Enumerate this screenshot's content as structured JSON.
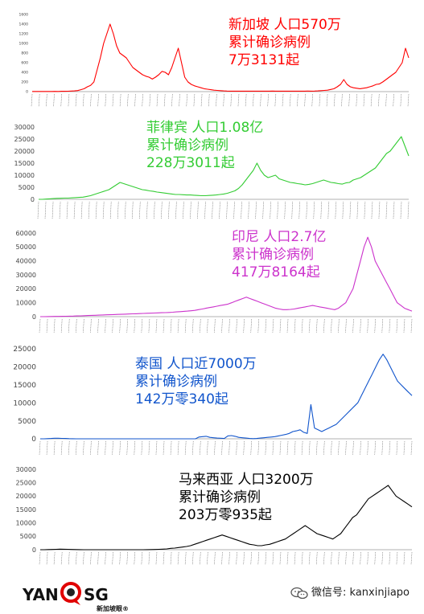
{
  "chart_data": [
    {
      "type": "line",
      "series": [
        {
          "values": [
            3,
            3,
            3,
            3,
            3,
            4,
            4,
            5,
            4,
            6,
            6,
            8,
            12,
            15,
            22,
            40,
            60,
            100,
            130,
            200,
            450,
            700,
            1000,
            1200,
            1400,
            1200,
            950,
            800,
            750,
            700,
            600,
            500,
            450,
            400,
            350,
            320,
            300,
            260,
            300,
            350,
            420,
            400,
            350,
            500,
            700,
            900,
            600,
            300,
            200,
            150,
            120,
            100,
            80,
            60,
            50,
            40,
            30,
            25,
            20,
            15,
            12,
            10,
            10,
            10,
            10,
            10,
            10,
            10,
            10,
            10,
            10,
            10,
            10,
            10,
            12,
            10,
            10,
            10,
            10,
            10,
            10,
            10,
            10,
            10,
            10,
            12,
            10,
            12,
            15,
            20,
            25,
            30,
            45,
            60,
            100,
            150,
            250,
            150,
            100,
            80,
            70,
            60,
            70,
            80,
            100,
            120,
            150,
            160,
            200,
            250,
            300,
            350,
            400,
            500,
            600,
            900,
            700
          ]
        }
      ],
      "yticks": [
        0,
        200,
        400,
        600,
        800,
        1000,
        1200,
        1400,
        1600
      ],
      "ylim": [
        0,
        1600
      ],
      "color": "#ff0000",
      "annotation": {
        "line1": "新加坡  人口570万",
        "line2": "累计确诊病例",
        "line3": "7万3131起"
      }
    },
    {
      "type": "line",
      "series": [
        {
          "values": [
            0,
            0,
            100,
            200,
            300,
            400,
            450,
            500,
            500,
            600,
            700,
            800,
            900,
            1200,
            1500,
            2000,
            2500,
            3000,
            3500,
            4000,
            5000,
            6000,
            7000,
            6500,
            6000,
            5500,
            5000,
            4500,
            4000,
            3800,
            3500,
            3300,
            3000,
            2800,
            2600,
            2400,
            2200,
            2000,
            2000,
            1900,
            1800,
            1800,
            1700,
            1600,
            1500,
            1500,
            1600,
            1700,
            1800,
            2000,
            2200,
            2500,
            3000,
            3500,
            4500,
            6000,
            8000,
            10000,
            12000,
            15000,
            12000,
            10000,
            9000,
            9500,
            10000,
            8500,
            8000,
            7500,
            7000,
            6800,
            6500,
            6300,
            6000,
            6200,
            6500,
            7000,
            7500,
            8000,
            7500,
            7000,
            6800,
            6500,
            6300,
            6800,
            7000,
            8000,
            8500,
            9000,
            10000,
            11000,
            12000,
            13000,
            15000,
            17000,
            19000,
            20000,
            22000,
            24000,
            26000,
            22000,
            18000
          ]
        }
      ],
      "yticks": [
        0,
        5000,
        10000,
        15000,
        20000,
        25000,
        30000
      ],
      "ylim": [
        0,
        30000
      ],
      "color": "#33cc33",
      "annotation": {
        "line1": "菲律宾  人口1.08亿",
        "line2": "累计确诊病例",
        "line3": "228万3011起"
      }
    },
    {
      "type": "line",
      "series": [
        {
          "values": [
            0,
            0,
            50,
            100,
            150,
            200,
            250,
            300,
            350,
            400,
            500,
            600,
            700,
            800,
            900,
            1000,
            1100,
            1200,
            1300,
            1400,
            1500,
            1600,
            1700,
            1800,
            1900,
            2000,
            2100,
            2200,
            2300,
            2400,
            2500,
            2600,
            2700,
            2800,
            2900,
            3000,
            3200,
            3400,
            3600,
            3800,
            4000,
            4200,
            4500,
            5000,
            5500,
            6000,
            6500,
            7000,
            7500,
            8000,
            8500,
            9000,
            10000,
            11000,
            12000,
            13000,
            14000,
            13000,
            12000,
            11000,
            10000,
            9000,
            8000,
            7000,
            6000,
            5500,
            5000,
            5000,
            5200,
            5500,
            6000,
            6500,
            7000,
            7500,
            8000,
            7500,
            7000,
            6500,
            6000,
            5500,
            5000,
            6000,
            8000,
            10000,
            15000,
            20000,
            30000,
            40000,
            50000,
            57000,
            50000,
            40000,
            35000,
            30000,
            25000,
            20000,
            15000,
            10000,
            8000,
            6000,
            5000,
            4000
          ]
        }
      ],
      "yticks": [
        0,
        10000,
        20000,
        30000,
        40000,
        50000,
        60000
      ],
      "ylim": [
        0,
        60000
      ],
      "color": "#cc33cc",
      "annotation": {
        "line1": "印尼  人口2.7亿",
        "line2": "累计确诊病例",
        "line3": "417万8164起"
      }
    },
    {
      "type": "line",
      "series": [
        {
          "values": [
            0,
            0,
            50,
            100,
            150,
            150,
            120,
            100,
            50,
            20,
            10,
            5,
            5,
            5,
            5,
            5,
            5,
            5,
            5,
            5,
            5,
            5,
            5,
            5,
            5,
            5,
            5,
            5,
            5,
            5,
            5,
            5,
            5,
            5,
            5,
            5,
            5,
            5,
            5,
            5,
            5,
            5,
            5,
            5,
            500,
            600,
            700,
            400,
            300,
            200,
            150,
            100,
            800,
            900,
            700,
            400,
            300,
            200,
            100,
            50,
            100,
            200,
            300,
            400,
            500,
            600,
            800,
            1000,
            1200,
            1500,
            2000,
            2200,
            2500,
            1800,
            1500,
            9500,
            3000,
            2500,
            2000,
            2500,
            3000,
            3500,
            4000,
            5000,
            6000,
            7000,
            8000,
            9000,
            10000,
            12000,
            14000,
            16000,
            18000,
            20000,
            22000,
            23500,
            22000,
            20000,
            18000,
            16000,
            15000,
            14000,
            13000,
            12000
          ]
        }
      ],
      "yticks": [
        0,
        5000,
        10000,
        15000,
        20000,
        25000
      ],
      "ylim": [
        0,
        25000
      ],
      "color": "#1155cc",
      "annotation": {
        "line1": "泰国  人口近7000万",
        "line2": "累计确诊病例",
        "line3": "142万零340起"
      }
    },
    {
      "type": "line",
      "series": [
        {
          "values": [
            0,
            0,
            50,
            100,
            150,
            200,
            180,
            150,
            100,
            50,
            20,
            10,
            5,
            5,
            5,
            5,
            5,
            5,
            5,
            5,
            5,
            5,
            5,
            5,
            5,
            5,
            10,
            20,
            50,
            100,
            150,
            200,
            300,
            500,
            600,
            800,
            1000,
            1200,
            1500,
            2000,
            2500,
            3000,
            3500,
            4000,
            4500,
            5000,
            5500,
            5000,
            4500,
            4000,
            3500,
            3000,
            2500,
            2000,
            1800,
            1500,
            1500,
            1800,
            2000,
            2500,
            3000,
            3500,
            4000,
            5000,
            6000,
            7000,
            8000,
            9000,
            8000,
            7000,
            6000,
            5500,
            5000,
            4500,
            4000,
            5000,
            6000,
            8000,
            10000,
            12000,
            13000,
            15000,
            17000,
            19000,
            20000,
            21000,
            22000,
            23000,
            24000,
            22000,
            20000,
            19000,
            18000,
            17000,
            16000
          ]
        }
      ],
      "yticks": [
        0,
        5000,
        10000,
        15000,
        20000,
        25000,
        30000
      ],
      "ylim": [
        0,
        30000
      ],
      "color": "#000000",
      "annotation": {
        "line1": "马来西亚  人口3200万",
        "line2": "累计确诊病例",
        "line3": "203万零935起"
      }
    }
  ],
  "footer": {
    "logo_left": "YAN",
    "logo_right": "SG",
    "logo_sub": "新加坡眼®",
    "wechat": "微信号: kanxinjiapo"
  }
}
